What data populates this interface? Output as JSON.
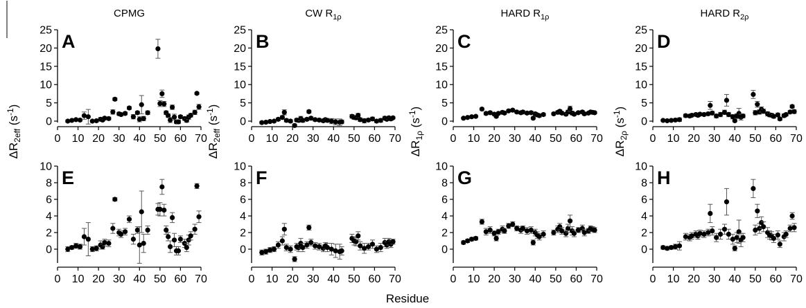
{
  "figure": {
    "column_titles": [
      {
        "base": "CPMG",
        "sub": ""
      },
      {
        "base": "CW R",
        "sub": "1ρ"
      },
      {
        "base": "HARD R",
        "sub": "1ρ"
      },
      {
        "base": "HARD R",
        "sub": "2ρ"
      }
    ],
    "y_labels": [
      {
        "pre": "ΔR",
        "sub": "2eff",
        "post": " (s",
        "sup": "-1",
        "end": ")"
      },
      {
        "pre": "ΔR",
        "sub": "2eff",
        "post": " (s",
        "sup": "-1",
        "end": ")"
      },
      {
        "pre": "ΔR",
        "sub": "1ρ",
        "post": " (s",
        "sup": "-1",
        "end": ")"
      },
      {
        "pre": "ΔR",
        "sub": "2ρ",
        "post": " (s",
        "sup": "-1",
        "end": ")"
      }
    ],
    "x_label": "Residue"
  },
  "chart_data": [
    {
      "type": "scatter",
      "panel": "A",
      "row": 0,
      "col": 0,
      "xlim": [
        0,
        70
      ],
      "ylim": [
        0,
        25
      ],
      "yticks": [
        0,
        5,
        10,
        15,
        20,
        25
      ],
      "xticks": [
        0,
        10,
        20,
        30,
        40,
        50,
        60,
        70
      ],
      "x": [
        5,
        7,
        9,
        11,
        13,
        15,
        17,
        19,
        21,
        22,
        23,
        25,
        27,
        28,
        30,
        31,
        33,
        35,
        37,
        39,
        40,
        41,
        42,
        44,
        49,
        50,
        51,
        52,
        53,
        54,
        55,
        56,
        57,
        58,
        59,
        60,
        62,
        63,
        64,
        65,
        67,
        68,
        69
      ],
      "y": [
        0,
        0.2,
        0.4,
        0.3,
        1.5,
        1.2,
        0,
        0.1,
        0.5,
        0.3,
        0.8,
        0.7,
        2.5,
        6,
        2,
        1.8,
        2.1,
        3.6,
        1.2,
        2.3,
        0.5,
        4.5,
        0.7,
        2.3,
        19.8,
        4.8,
        7.5,
        4.7,
        2.3,
        1.5,
        0.3,
        3.8,
        1.1,
        -0.2,
        -0.2,
        1.2,
        0.7,
        0.2,
        1.1,
        1.6,
        2.4,
        7.6,
        3.9
      ],
      "err": [
        0.3,
        0.2,
        0.3,
        0.3,
        1,
        2,
        0.3,
        0.3,
        0.5,
        0.3,
        0.4,
        0.4,
        0.6,
        0.4,
        0.4,
        0.4,
        0.4,
        0.4,
        0.6,
        0.4,
        0.7,
        2.5,
        0.6,
        0.5,
        2.6,
        0.8,
        1,
        0.7,
        0.5,
        0.5,
        0.7,
        0.6,
        0.8,
        0.5,
        0.5,
        0.4,
        0.5,
        0.5,
        0.6,
        0.5,
        0.6,
        0.3,
        0.7
      ]
    },
    {
      "type": "scatter",
      "panel": "B",
      "row": 0,
      "col": 1,
      "xlim": [
        0,
        70
      ],
      "ylim": [
        0,
        25
      ],
      "yticks": [
        0,
        5,
        10,
        15,
        20,
        25
      ],
      "xticks": [
        0,
        10,
        20,
        30,
        40,
        50,
        60,
        70
      ],
      "x": [
        5,
        7,
        9,
        11,
        13,
        15,
        16,
        17,
        19,
        21,
        22,
        23,
        24,
        25,
        27,
        28,
        29,
        31,
        33,
        35,
        36,
        37,
        39,
        41,
        43,
        44,
        49,
        50,
        51,
        52,
        53,
        55,
        57,
        59,
        61,
        63,
        65,
        66,
        67,
        68,
        69
      ],
      "y": [
        -0.4,
        -0.3,
        -0.1,
        0,
        0.5,
        1,
        2.4,
        0.2,
        0,
        -1.2,
        0.3,
        0.2,
        0.7,
        0.2,
        0.5,
        2.6,
        0.8,
        0.4,
        0.3,
        0.1,
        0.4,
        0.2,
        0,
        -0.2,
        -0.3,
        -0.2,
        1.3,
        1,
        0.9,
        1.6,
        0.4,
        0.1,
        0.3,
        0.6,
        0,
        0.2,
        0.8,
        0.5,
        0.9,
        0.6,
        0.9
      ],
      "err": [
        0.3,
        0.3,
        0.3,
        0.3,
        0.4,
        0.5,
        0.7,
        0.4,
        0.4,
        0.4,
        0.4,
        0.5,
        0.6,
        0.5,
        0.4,
        0.4,
        0.4,
        0.4,
        0.4,
        0.4,
        0.4,
        0.5,
        0.7,
        0.8,
        0.9,
        0.5,
        0.5,
        0.5,
        0.5,
        0.5,
        0.5,
        0.6,
        0.4,
        0.5,
        0.4,
        0.5,
        0.5,
        0.4,
        0.4,
        0.4,
        0.3
      ]
    },
    {
      "type": "scatter",
      "panel": "C",
      "row": 0,
      "col": 2,
      "xlim": [
        0,
        70
      ],
      "ylim": [
        0,
        25
      ],
      "yticks": [
        0,
        5,
        10,
        15,
        20,
        25
      ],
      "xticks": [
        0,
        10,
        20,
        30,
        40,
        50,
        60,
        70
      ],
      "x": [
        5,
        7,
        9,
        11,
        14,
        16,
        18,
        20,
        21,
        22,
        24,
        25,
        27,
        29,
        31,
        33,
        34,
        36,
        38,
        39,
        40,
        41,
        42,
        44,
        49,
        51,
        52,
        53,
        55,
        56,
        57,
        58,
        59,
        61,
        63,
        64,
        66,
        67,
        68,
        69
      ],
      "y": [
        0.8,
        1,
        1.2,
        1.3,
        3.3,
        2.1,
        2.3,
        1.9,
        1.3,
        2.1,
        2.4,
        2.2,
        2.8,
        3,
        2.5,
        2.3,
        2.5,
        2.2,
        2.3,
        0.8,
        2,
        1.7,
        1.5,
        1.8,
        2,
        2.4,
        2.7,
        2.2,
        1.9,
        2.5,
        3.4,
        2.2,
        1.9,
        2.3,
        2.5,
        2,
        2.2,
        2.5,
        2.4,
        2.3
      ],
      "err": [
        0.2,
        0.2,
        0.2,
        0.2,
        0.3,
        0.4,
        0.4,
        0.3,
        0.3,
        0.3,
        0.4,
        0.3,
        0.3,
        0.3,
        0.3,
        0.4,
        0.3,
        0.4,
        0.4,
        0.3,
        0.4,
        0.4,
        0.4,
        0.4,
        0.3,
        0.4,
        0.4,
        0.4,
        0.4,
        0.5,
        0.7,
        0.5,
        0.4,
        0.3,
        0.4,
        0.4,
        0.3,
        0.3,
        0.3,
        0.3
      ]
    },
    {
      "type": "scatter",
      "panel": "D",
      "row": 0,
      "col": 3,
      "xlim": [
        0,
        70
      ],
      "ylim": [
        0,
        25
      ],
      "yticks": [
        0,
        5,
        10,
        15,
        20,
        25
      ],
      "xticks": [
        0,
        10,
        20,
        30,
        40,
        50,
        60,
        70
      ],
      "x": [
        5,
        7,
        9,
        11,
        13,
        16,
        18,
        19,
        21,
        22,
        23,
        25,
        27,
        28,
        29,
        31,
        33,
        35,
        36,
        37,
        39,
        40,
        41,
        42,
        43,
        44,
        49,
        50,
        51,
        52,
        53,
        54,
        56,
        57,
        58,
        59,
        61,
        62,
        64,
        65,
        67,
        68,
        69
      ],
      "y": [
        0.2,
        0.1,
        0.2,
        0.3,
        0.4,
        1.5,
        1.4,
        1.6,
        1.8,
        1.6,
        1.9,
        1.8,
        2,
        4.3,
        2.2,
        1.4,
        1.8,
        2.4,
        5.7,
        1.8,
        1.2,
        0.1,
        1.4,
        2.1,
        1.1,
        1.4,
        7.3,
        2.3,
        4.6,
        2.5,
        3.2,
        2.7,
        2,
        1.7,
        1.6,
        1.3,
        1.7,
        0.6,
        1.5,
        1.8,
        2.5,
        4,
        2.6
      ],
      "err": [
        0.2,
        0.2,
        0.2,
        0.3,
        0.5,
        0.4,
        0.4,
        0.4,
        0.4,
        0.4,
        0.4,
        0.4,
        0.4,
        1.1,
        0.5,
        0.5,
        0.6,
        0.6,
        1.6,
        0.6,
        0.6,
        0.3,
        0.6,
        1.4,
        0.8,
        0.5,
        1.1,
        0.6,
        0.8,
        0.6,
        0.7,
        0.6,
        0.6,
        0.5,
        0.5,
        0.5,
        0.5,
        0.4,
        0.5,
        0.4,
        0.4,
        0.4,
        0.5
      ]
    },
    {
      "type": "scatter",
      "panel": "E",
      "row": 1,
      "col": 0,
      "xlim": [
        0,
        70
      ],
      "ylim": [
        -1.5,
        10
      ],
      "yticks": [
        0,
        2,
        4,
        6,
        8,
        10
      ],
      "xticks": [
        0,
        10,
        20,
        30,
        40,
        50,
        60,
        70
      ],
      "x": [
        5,
        7,
        9,
        11,
        13,
        15,
        17,
        19,
        21,
        22,
        23,
        25,
        27,
        28,
        30,
        31,
        33,
        35,
        37,
        39,
        40,
        41,
        42,
        44,
        49,
        50,
        51,
        52,
        53,
        54,
        55,
        56,
        57,
        58,
        59,
        60,
        62,
        63,
        64,
        65,
        67,
        68,
        69
      ],
      "y": [
        0,
        0.2,
        0.4,
        0.3,
        1.5,
        1.2,
        0,
        0.1,
        0.5,
        0.3,
        0.8,
        0.7,
        2.5,
        6,
        2,
        1.8,
        2.1,
        3.6,
        1.2,
        2.3,
        0.5,
        4.5,
        0.7,
        2.3,
        4.8,
        4.8,
        7.5,
        4.7,
        2.3,
        1.5,
        0.3,
        3.8,
        1.1,
        -0.2,
        -0.2,
        1.2,
        0.7,
        0.2,
        1.1,
        1.6,
        2.4,
        7.6,
        3.9
      ],
      "err": [
        0.3,
        0.2,
        0.3,
        0.3,
        1,
        2,
        0.3,
        0.3,
        0.5,
        0.3,
        0.4,
        0.4,
        0.6,
        0.2,
        0.4,
        0.4,
        0.4,
        0.4,
        0.6,
        0.4,
        2.2,
        2.5,
        1.1,
        0.5,
        0.7,
        0.8,
        0.9,
        0.7,
        0.5,
        0.5,
        0.7,
        0.6,
        0.8,
        0.5,
        0.5,
        0.4,
        0.5,
        0.5,
        0.6,
        0.5,
        0.6,
        0.3,
        0.7
      ]
    },
    {
      "type": "scatter",
      "panel": "F",
      "row": 1,
      "col": 1,
      "xlim": [
        0,
        70
      ],
      "ylim": [
        -1.5,
        10
      ],
      "yticks": [
        0,
        2,
        4,
        6,
        8,
        10
      ],
      "xticks": [
        0,
        10,
        20,
        30,
        40,
        50,
        60,
        70
      ],
      "x": [
        5,
        7,
        9,
        11,
        13,
        15,
        16,
        17,
        19,
        21,
        22,
        23,
        24,
        25,
        27,
        28,
        29,
        31,
        33,
        35,
        36,
        37,
        39,
        41,
        43,
        44,
        49,
        50,
        51,
        52,
        53,
        55,
        57,
        59,
        61,
        63,
        65,
        66,
        67,
        68,
        69
      ],
      "y": [
        -0.4,
        -0.3,
        -0.1,
        0,
        0.5,
        1,
        2.4,
        0.2,
        0,
        -1.2,
        0.3,
        0.2,
        0.7,
        0.2,
        0.5,
        2.6,
        0.8,
        0.4,
        0.3,
        0.1,
        0.4,
        0.2,
        0,
        -0.2,
        -0.3,
        -0.2,
        1.3,
        1,
        0.9,
        1.6,
        0.4,
        0.1,
        0.3,
        0.6,
        0,
        0.2,
        0.8,
        0.5,
        0.9,
        0.6,
        0.9
      ],
      "err": [
        0.3,
        0.3,
        0.3,
        0.3,
        0.4,
        0.5,
        0.7,
        0.4,
        0.4,
        0.3,
        0.4,
        0.5,
        0.6,
        0.5,
        0.4,
        0.3,
        0.4,
        0.4,
        0.4,
        0.4,
        0.4,
        0.5,
        0.7,
        0.8,
        0.9,
        0.5,
        0.5,
        0.5,
        0.5,
        0.5,
        0.5,
        0.6,
        0.4,
        0.5,
        0.4,
        0.5,
        0.5,
        0.4,
        0.4,
        0.4,
        0.3
      ]
    },
    {
      "type": "scatter",
      "panel": "G",
      "row": 1,
      "col": 2,
      "xlim": [
        0,
        70
      ],
      "ylim": [
        -1.5,
        10
      ],
      "yticks": [
        0,
        2,
        4,
        6,
        8,
        10
      ],
      "xticks": [
        0,
        10,
        20,
        30,
        40,
        50,
        60,
        70
      ],
      "x": [
        5,
        7,
        9,
        11,
        14,
        16,
        18,
        20,
        21,
        22,
        24,
        25,
        27,
        29,
        31,
        33,
        34,
        36,
        38,
        39,
        40,
        41,
        42,
        44,
        49,
        51,
        52,
        53,
        55,
        56,
        57,
        58,
        59,
        61,
        63,
        64,
        66,
        67,
        68,
        69
      ],
      "y": [
        0.8,
        1,
        1.2,
        1.3,
        3.3,
        2.1,
        2.3,
        1.9,
        1.3,
        2.1,
        2.4,
        2.2,
        2.8,
        3,
        2.5,
        2.3,
        2.5,
        2.2,
        2.3,
        0.8,
        2,
        1.7,
        1.5,
        1.8,
        2,
        2.4,
        2.7,
        2.2,
        1.9,
        2.5,
        3.4,
        2.2,
        1.9,
        2.3,
        2.5,
        2,
        2.2,
        2.5,
        2.4,
        2.3
      ],
      "err": [
        0.2,
        0.2,
        0.2,
        0.2,
        0.3,
        0.4,
        0.4,
        0.3,
        0.3,
        0.3,
        0.4,
        0.3,
        0.3,
        0.3,
        0.3,
        0.4,
        0.3,
        0.4,
        0.4,
        0.3,
        0.4,
        0.4,
        0.4,
        0.4,
        0.3,
        0.4,
        0.4,
        0.4,
        0.4,
        0.5,
        0.7,
        0.5,
        0.4,
        0.3,
        0.4,
        0.4,
        0.3,
        0.3,
        0.3,
        0.3
      ]
    },
    {
      "type": "scatter",
      "panel": "H",
      "row": 1,
      "col": 3,
      "xlim": [
        0,
        70
      ],
      "ylim": [
        -1.5,
        10
      ],
      "yticks": [
        0,
        2,
        4,
        6,
        8,
        10
      ],
      "xticks": [
        0,
        10,
        20,
        30,
        40,
        50,
        60,
        70
      ],
      "x": [
        5,
        7,
        9,
        11,
        13,
        16,
        18,
        19,
        21,
        22,
        23,
        25,
        27,
        28,
        29,
        31,
        33,
        35,
        36,
        37,
        39,
        40,
        41,
        42,
        43,
        44,
        49,
        50,
        51,
        52,
        53,
        54,
        56,
        57,
        58,
        59,
        61,
        62,
        64,
        65,
        67,
        68,
        69
      ],
      "y": [
        0.2,
        0.1,
        0.2,
        0.3,
        0.4,
        1.5,
        1.4,
        1.6,
        1.8,
        1.6,
        1.9,
        1.8,
        2,
        4.3,
        2.2,
        1.4,
        1.8,
        2.4,
        5.7,
        1.8,
        1.2,
        0.1,
        1.4,
        2.1,
        1.1,
        1.4,
        7.3,
        2.3,
        4.6,
        2.5,
        3.2,
        2.7,
        2,
        1.7,
        1.6,
        1.3,
        1.7,
        0.6,
        1.5,
        1.8,
        2.5,
        4,
        2.6
      ],
      "err": [
        0.2,
        0.2,
        0.2,
        0.3,
        0.5,
        0.4,
        0.4,
        0.4,
        0.4,
        0.4,
        0.4,
        0.4,
        0.4,
        1.1,
        0.5,
        0.5,
        0.6,
        0.6,
        1.6,
        0.6,
        0.6,
        0.3,
        0.6,
        1.4,
        0.8,
        0.5,
        1.1,
        0.6,
        0.8,
        0.6,
        0.7,
        0.6,
        0.6,
        0.5,
        0.5,
        0.5,
        0.5,
        0.4,
        0.5,
        0.4,
        0.4,
        0.4,
        0.5
      ]
    }
  ]
}
